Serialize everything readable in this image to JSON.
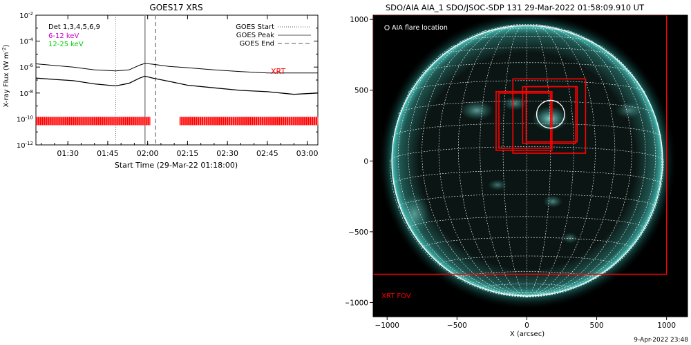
{
  "chart_data": [
    {
      "type": "line",
      "title": "GOES17 XRS",
      "xlabel": "Start Time (29-Mar-22 01:18:00)",
      "ylabel": "X-ray Flux (W m",
      "ylabel_sup": "-2",
      "ylabel_close": ")",
      "x_ticks": [
        "01:30",
        "01:45",
        "02:00",
        "02:15",
        "02:30",
        "02:45",
        "03:00"
      ],
      "y_tick_labels": [
        {
          "base": "10",
          "exp": "-2"
        },
        {
          "base": "10",
          "exp": "-4"
        },
        {
          "base": "10",
          "exp": "-6"
        },
        {
          "base": "10",
          "exp": "-8"
        },
        {
          "base": "10",
          "exp": "-10"
        },
        {
          "base": "10",
          "exp": "-12"
        }
      ],
      "xlim": [
        "01:18",
        "03:04"
      ],
      "ylim_log10": [
        -12,
        -2
      ],
      "scale": "log",
      "legend_left": [
        "Det 1,3,4,5,6,9",
        "6-12 keV",
        "12-25 keV"
      ],
      "legend_left_colors": [
        "#000000",
        "#cc00cc",
        "#00cc00"
      ],
      "legend_right": [
        "GOES Start",
        "GOES Peak",
        "GOES End"
      ],
      "event_lines": {
        "start": "01:48",
        "peak": "01:59",
        "end": "02:03"
      },
      "xrt_label": "XRT",
      "xrt_color": "#ff0000",
      "xrt_coverage": [
        [
          "01:18",
          "02:01"
        ],
        [
          "02:12",
          "03:04"
        ]
      ],
      "series": [
        {
          "name": "",
          "color": "#000000",
          "times": [
            "01:18",
            "01:25",
            "01:32",
            "01:40",
            "01:48",
            "01:53",
            "01:57",
            "01:59",
            "02:02",
            "02:08",
            "02:15",
            "02:25",
            "02:35",
            "02:45",
            "02:55",
            "03:04"
          ],
          "log_flux": [
            -5.75,
            -5.88,
            -6.0,
            -6.22,
            -6.3,
            -6.22,
            -5.85,
            -5.72,
            -5.78,
            -5.95,
            -6.05,
            -6.22,
            -6.35,
            -6.45,
            -6.45,
            -6.45
          ]
        },
        {
          "name": "",
          "color": "#000000",
          "times": [
            "01:18",
            "01:25",
            "01:32",
            "01:40",
            "01:48",
            "01:53",
            "01:57",
            "01:59",
            "02:02",
            "02:08",
            "02:15",
            "02:25",
            "02:35",
            "02:45",
            "02:55",
            "03:04"
          ],
          "log_flux": [
            -6.85,
            -6.95,
            -7.05,
            -7.3,
            -7.45,
            -7.25,
            -6.85,
            -6.7,
            -6.85,
            -7.1,
            -7.4,
            -7.6,
            -7.8,
            -7.9,
            -8.1,
            -8.0
          ]
        }
      ]
    },
    {
      "type": "image",
      "title": "SDO/AIA AIA_1 SDO/JSOC-SDP 131 29-Mar-2022 01:58:09.910 UT",
      "xlabel": "X (arcsec)",
      "x_ticks": [
        "−1000",
        "−500",
        "0",
        "500",
        "1000"
      ],
      "y_ticks": [
        "1000",
        "500",
        "0",
        "−500",
        "−1000"
      ],
      "xlim": [
        -1100,
        1150
      ],
      "ylim": [
        -1100,
        1030
      ],
      "solar_radius_arcsec": 980,
      "flare_legend": "AIA flare location",
      "flare_location": {
        "x": 170,
        "y": 330,
        "r": 100
      },
      "xrt_fov_label": "XRT FOV",
      "xrt_fov": [
        -1100,
        -800,
        1000,
        1030
      ],
      "fov_boxes": [
        [
          -220,
          75,
          180,
          490
        ],
        [
          -200,
          90,
          170,
          480
        ],
        [
          -100,
          55,
          420,
          580
        ],
        [
          -30,
          125,
          350,
          525
        ],
        [
          -5,
          135,
          360,
          525
        ]
      ],
      "grid_color": "#ffffff",
      "disk_tint": "#4ecfc7",
      "box_color": "#ff0000"
    }
  ],
  "footer": {
    "timestamp": "9-Apr-2022 23:48"
  }
}
